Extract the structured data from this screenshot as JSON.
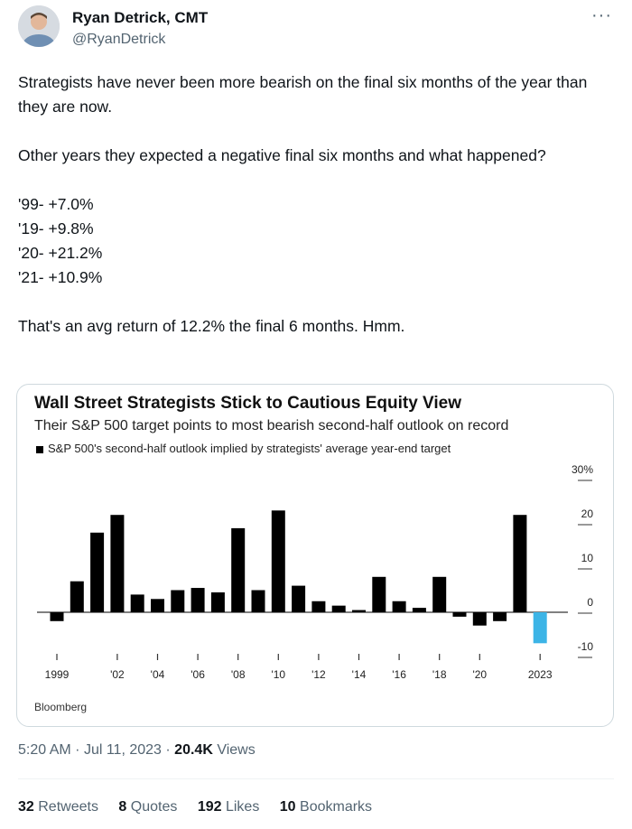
{
  "author": {
    "name": "Ryan Detrick, CMT",
    "handle": "@RyanDetrick"
  },
  "tweet": {
    "paragraphs": [
      "Strategists have never been more bearish on the final six months of the year than they are now.",
      "Other years they expected a negative final six months and what happened?",
      "'99- +7.0%",
      "'19- +9.8%",
      "'20- +21.2%",
      "'21- +10.9%",
      "That's an avg return of 12.2% the final 6 months. Hmm."
    ]
  },
  "chart_data": {
    "type": "bar",
    "title": "Wall Street Strategists Stick to Cautious Equity View",
    "subtitle": "Their S&P 500 target points to most bearish second-half outlook on record",
    "legend": "S&P 500's second-half outlook implied by strategists' average year-end target",
    "source": "Bloomberg",
    "categories": [
      "1999",
      "2000",
      "2001",
      "2002",
      "2003",
      "2004",
      "2005",
      "2006",
      "2007",
      "2008",
      "2009",
      "2010",
      "2011",
      "2012",
      "2013",
      "2014",
      "2015",
      "2016",
      "2017",
      "2018",
      "2019",
      "2020",
      "2021",
      "2022",
      "2023"
    ],
    "x_tick_labels": [
      "1999",
      "'02",
      "'04",
      "'06",
      "'08",
      "'10",
      "'12",
      "'14",
      "'16",
      "'18",
      "'20",
      "2023"
    ],
    "y_tick_labels": [
      "30%",
      "20",
      "10",
      "0",
      "-10"
    ],
    "series": [
      {
        "values": [
          -2,
          7,
          18,
          22,
          4,
          3,
          5,
          5.5,
          4.5,
          19,
          5,
          23,
          6,
          2.5,
          1.5,
          0.5,
          8,
          2.5,
          1,
          8,
          -1,
          -3,
          -2,
          22,
          -7
        ]
      }
    ],
    "ylim": [
      -10,
      30
    ],
    "colors": {
      "positive": "#000000",
      "current": "#3cb4e6"
    },
    "grid": false
  },
  "meta": {
    "time": "5:20 AM",
    "date": "Jul 11, 2023",
    "views_count": "20.4K",
    "views_label": "Views"
  },
  "stats": [
    {
      "count": "32",
      "label": "Retweets"
    },
    {
      "count": "8",
      "label": "Quotes"
    },
    {
      "count": "192",
      "label": "Likes"
    },
    {
      "count": "10",
      "label": "Bookmarks"
    }
  ],
  "icons": {
    "more": "more-icon",
    "avatar": "avatar-photo"
  }
}
